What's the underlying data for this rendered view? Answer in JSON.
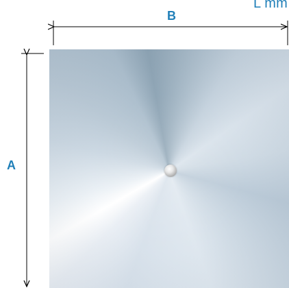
{
  "diagram": {
    "unit_label": "L mm",
    "dimension_width_label": "B",
    "dimension_height_label": "A",
    "accent_color": "#1f7fb8",
    "line_color": "#000000"
  }
}
